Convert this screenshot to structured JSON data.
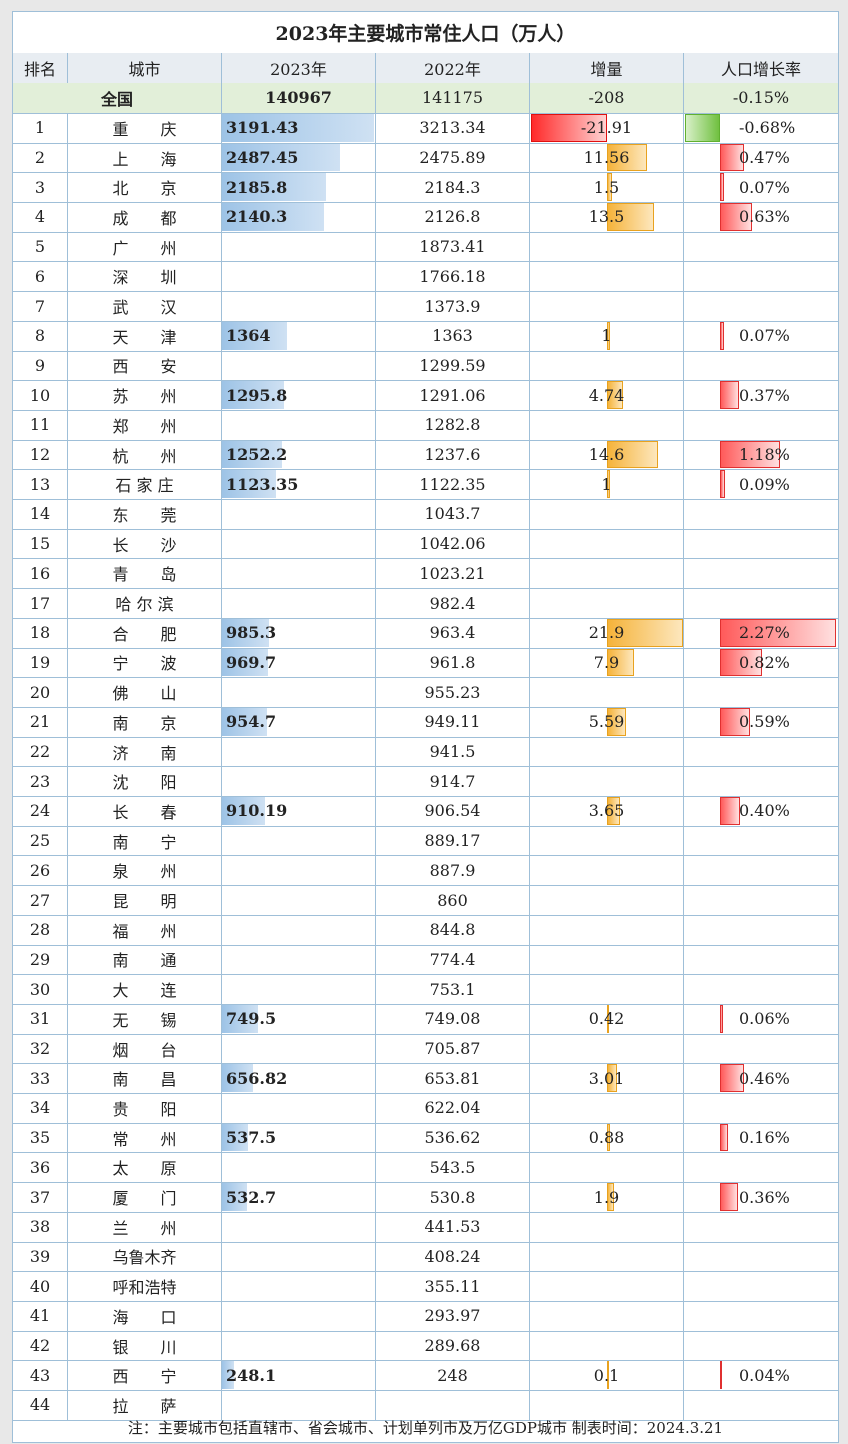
{
  "title": "2023年主要城市常住人口（万人）",
  "headers": [
    "排名",
    "城市",
    "2023年",
    "2022年",
    "增量",
    "人口增长率"
  ],
  "national": {
    "label": "全国",
    "y2023": "140967",
    "y2022": "141175",
    "inc": "-208",
    "rate": "-0.15%"
  },
  "rows": [
    {
      "rank": "1",
      "city": "重　　庆",
      "y2023": "3191.43",
      "y2022": "3213.34",
      "inc": "-21.91",
      "rate": "-0.68%"
    },
    {
      "rank": "2",
      "city": "上　　海",
      "y2023": "2487.45",
      "y2022": "2475.89",
      "inc": "11.56",
      "rate": "0.47%"
    },
    {
      "rank": "3",
      "city": "北　　京",
      "y2023": "2185.8",
      "y2022": "2184.3",
      "inc": "1.5",
      "rate": "0.07%"
    },
    {
      "rank": "4",
      "city": "成　　都",
      "y2023": "2140.3",
      "y2022": "2126.8",
      "inc": "13.5",
      "rate": "0.63%"
    },
    {
      "rank": "5",
      "city": "广　　州",
      "y2023": "",
      "y2022": "1873.41",
      "inc": "",
      "rate": ""
    },
    {
      "rank": "6",
      "city": "深　　圳",
      "y2023": "",
      "y2022": "1766.18",
      "inc": "",
      "rate": ""
    },
    {
      "rank": "7",
      "city": "武　　汉",
      "y2023": "",
      "y2022": "1373.9",
      "inc": "",
      "rate": ""
    },
    {
      "rank": "8",
      "city": "天　　津",
      "y2023": "1364",
      "y2022": "1363",
      "inc": "1",
      "rate": "0.07%"
    },
    {
      "rank": "9",
      "city": "西　　安",
      "y2023": "",
      "y2022": "1299.59",
      "inc": "",
      "rate": ""
    },
    {
      "rank": "10",
      "city": "苏　　州",
      "y2023": "1295.8",
      "y2022": "1291.06",
      "inc": "4.74",
      "rate": "0.37%"
    },
    {
      "rank": "11",
      "city": "郑　　州",
      "y2023": "",
      "y2022": "1282.8",
      "inc": "",
      "rate": ""
    },
    {
      "rank": "12",
      "city": "杭　　州",
      "y2023": "1252.2",
      "y2022": "1237.6",
      "inc": "14.6",
      "rate": "1.18%"
    },
    {
      "rank": "13",
      "city": "石 家 庄",
      "y2023": "1123.35",
      "y2022": "1122.35",
      "inc": "1",
      "rate": "0.09%"
    },
    {
      "rank": "14",
      "city": "东　　莞",
      "y2023": "",
      "y2022": "1043.7",
      "inc": "",
      "rate": ""
    },
    {
      "rank": "15",
      "city": "长　　沙",
      "y2023": "",
      "y2022": "1042.06",
      "inc": "",
      "rate": ""
    },
    {
      "rank": "16",
      "city": "青　　岛",
      "y2023": "",
      "y2022": "1023.21",
      "inc": "",
      "rate": ""
    },
    {
      "rank": "17",
      "city": "哈 尔 滨",
      "y2023": "",
      "y2022": "982.4",
      "inc": "",
      "rate": ""
    },
    {
      "rank": "18",
      "city": "合　　肥",
      "y2023": "985.3",
      "y2022": "963.4",
      "inc": "21.9",
      "rate": "2.27%"
    },
    {
      "rank": "19",
      "city": "宁　　波",
      "y2023": "969.7",
      "y2022": "961.8",
      "inc": "7.9",
      "rate": "0.82%"
    },
    {
      "rank": "20",
      "city": "佛　　山",
      "y2023": "",
      "y2022": "955.23",
      "inc": "",
      "rate": ""
    },
    {
      "rank": "21",
      "city": "南　　京",
      "y2023": "954.7",
      "y2022": "949.11",
      "inc": "5.59",
      "rate": "0.59%"
    },
    {
      "rank": "22",
      "city": "济　　南",
      "y2023": "",
      "y2022": "941.5",
      "inc": "",
      "rate": ""
    },
    {
      "rank": "23",
      "city": "沈　　阳",
      "y2023": "",
      "y2022": "914.7",
      "inc": "",
      "rate": ""
    },
    {
      "rank": "24",
      "city": "长　　春",
      "y2023": "910.19",
      "y2022": "906.54",
      "inc": "3.65",
      "rate": "0.40%"
    },
    {
      "rank": "25",
      "city": "南　　宁",
      "y2023": "",
      "y2022": "889.17",
      "inc": "",
      "rate": ""
    },
    {
      "rank": "26",
      "city": "泉　　州",
      "y2023": "",
      "y2022": "887.9",
      "inc": "",
      "rate": ""
    },
    {
      "rank": "27",
      "city": "昆　　明",
      "y2023": "",
      "y2022": "860",
      "inc": "",
      "rate": ""
    },
    {
      "rank": "28",
      "city": "福　　州",
      "y2023": "",
      "y2022": "844.8",
      "inc": "",
      "rate": ""
    },
    {
      "rank": "29",
      "city": "南　　通",
      "y2023": "",
      "y2022": "774.4",
      "inc": "",
      "rate": ""
    },
    {
      "rank": "30",
      "city": "大　　连",
      "y2023": "",
      "y2022": "753.1",
      "inc": "",
      "rate": ""
    },
    {
      "rank": "31",
      "city": "无　　锡",
      "y2023": "749.5",
      "y2022": "749.08",
      "inc": "0.42",
      "rate": "0.06%"
    },
    {
      "rank": "32",
      "city": "烟　　台",
      "y2023": "",
      "y2022": "705.87",
      "inc": "",
      "rate": ""
    },
    {
      "rank": "33",
      "city": "南　　昌",
      "y2023": "656.82",
      "y2022": "653.81",
      "inc": "3.01",
      "rate": "0.46%"
    },
    {
      "rank": "34",
      "city": "贵　　阳",
      "y2023": "",
      "y2022": "622.04",
      "inc": "",
      "rate": ""
    },
    {
      "rank": "35",
      "city": "常　　州",
      "y2023": "537.5",
      "y2022": "536.62",
      "inc": "0.88",
      "rate": "0.16%"
    },
    {
      "rank": "36",
      "city": "太　　原",
      "y2023": "",
      "y2022": "543.5",
      "inc": "",
      "rate": ""
    },
    {
      "rank": "37",
      "city": "厦　　门",
      "y2023": "532.7",
      "y2022": "530.8",
      "inc": "1.9",
      "rate": "0.36%"
    },
    {
      "rank": "38",
      "city": "兰　　州",
      "y2023": "",
      "y2022": "441.53",
      "inc": "",
      "rate": ""
    },
    {
      "rank": "39",
      "city": "乌鲁木齐",
      "y2023": "",
      "y2022": "408.24",
      "inc": "",
      "rate": ""
    },
    {
      "rank": "40",
      "city": "呼和浩特",
      "y2023": "",
      "y2022": "355.11",
      "inc": "",
      "rate": ""
    },
    {
      "rank": "41",
      "city": "海　　口",
      "y2023": "",
      "y2022": "293.97",
      "inc": "",
      "rate": ""
    },
    {
      "rank": "42",
      "city": "银　　川",
      "y2023": "",
      "y2022": "289.68",
      "inc": "",
      "rate": ""
    },
    {
      "rank": "43",
      "city": "西　　宁",
      "y2023": "248.1",
      "y2022": "248",
      "inc": "0.1",
      "rate": "0.04%"
    },
    {
      "rank": "44",
      "city": "拉　　萨",
      "y2023": "",
      "y2022": "",
      "inc": "",
      "rate": ""
    }
  ],
  "note": "注：主要城市包括直辖市、省会城市、计划单列市及万亿GDP城市 制表时间：2024.3.21",
  "colors": {
    "grid": "#9fbfd8",
    "pop_bar": "#9dc3e6",
    "increase_bar": "#f5b33a",
    "decrease_bar": "#ff2a2a",
    "rate_bar": "#ff5a5a",
    "negative_rate_bar": "#70c040",
    "national_row_bg": "#e2efd9"
  }
}
